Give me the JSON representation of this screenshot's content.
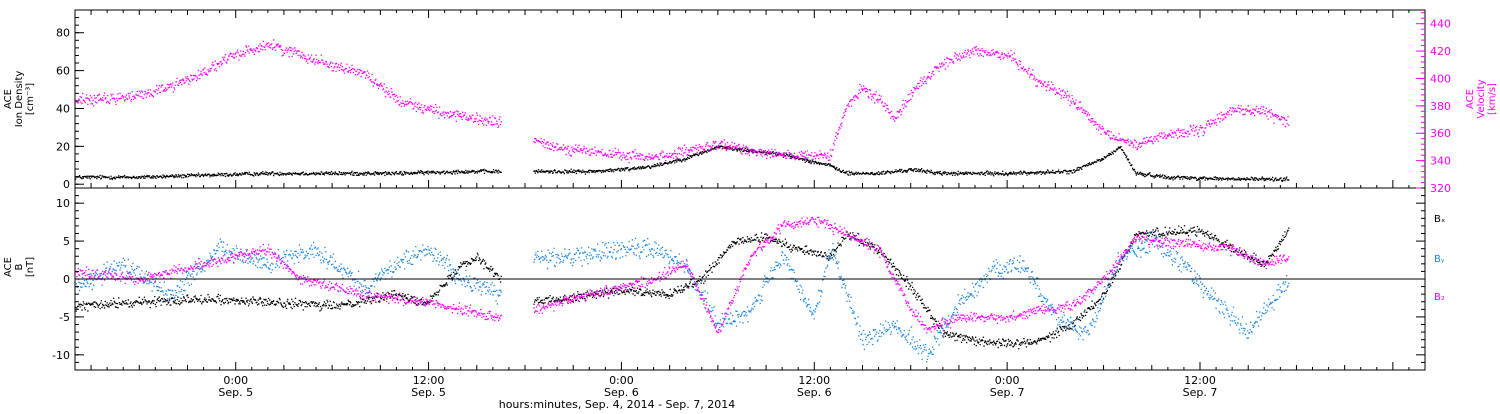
{
  "colors": {
    "black": "#000000",
    "magenta": "#ff00ff",
    "blue": "#1e88e5"
  },
  "x_axis": {
    "label": "hours:minutes, Sep.  4, 2014 - Sep.  7, 2014",
    "range": [
      "2014-09-04T14:00",
      "2014-09-08T02:00"
    ],
    "ticks": [
      {
        "time": "0:00",
        "date": "Sep. 5"
      },
      {
        "time": "12:00",
        "date": "Sep. 5"
      },
      {
        "time": "0:00",
        "date": "Sep. 6"
      },
      {
        "time": "12:00",
        "date": "Sep. 6"
      },
      {
        "time": "0:00",
        "date": "Sep. 7"
      },
      {
        "time": "12:00",
        "date": "Sep. 7"
      }
    ]
  },
  "chart_data": [
    {
      "type": "scatter",
      "panel": "top",
      "left_axis": {
        "label_lines": [
          "ACE",
          "Ion Density",
          "[cm⁻³]"
        ],
        "ylim": [
          -2,
          92
        ],
        "ticks": [
          "0",
          "20",
          "40",
          "60",
          "80"
        ],
        "color": "#000000"
      },
      "right_axis": {
        "label_lines": [
          "ACE",
          "Velocity",
          "[km/s]"
        ],
        "ylim": [
          320,
          450
        ],
        "ticks": [
          "320",
          "340",
          "360",
          "380",
          "400",
          "420",
          "440"
        ],
        "color": "#ff00ff"
      },
      "series": [
        {
          "key": "density",
          "axis": "left",
          "color": "#000000",
          "gaps": [
            [
              "2014-09-05T16:30",
              "2014-09-05T18:30"
            ]
          ],
          "points": [
            [
              "2014-09-04T14:00",
              4
            ],
            [
              "2014-09-04T18:00",
              4
            ],
            [
              "2014-09-04T22:00",
              5
            ],
            [
              "2014-09-05T02:00",
              6
            ],
            [
              "2014-09-05T06:00",
              6
            ],
            [
              "2014-09-05T10:00",
              6
            ],
            [
              "2014-09-05T14:00",
              7
            ],
            [
              "2014-09-05T16:30",
              7
            ],
            [
              "2014-09-05T18:30",
              7
            ],
            [
              "2014-09-05T22:00",
              7
            ],
            [
              "2014-09-06T00:00",
              8
            ],
            [
              "2014-09-06T02:00",
              10
            ],
            [
              "2014-09-06T04:00",
              14
            ],
            [
              "2014-09-06T06:00",
              20
            ],
            [
              "2014-09-06T08:00",
              18
            ],
            [
              "2014-09-06T10:00",
              16
            ],
            [
              "2014-09-06T12:00",
              12
            ],
            [
              "2014-09-06T13:00",
              10
            ],
            [
              "2014-09-06T14:00",
              6
            ],
            [
              "2014-09-06T16:00",
              6
            ],
            [
              "2014-09-06T18:00",
              8
            ],
            [
              "2014-09-06T20:00",
              6
            ],
            [
              "2014-09-07T00:00",
              6
            ],
            [
              "2014-09-07T04:00",
              7
            ],
            [
              "2014-09-07T06:00",
              14
            ],
            [
              "2014-09-07T07:00",
              20
            ],
            [
              "2014-09-07T08:00",
              6
            ],
            [
              "2014-09-07T10:00",
              4
            ],
            [
              "2014-09-07T14:00",
              3
            ],
            [
              "2014-09-07T17:30",
              3
            ]
          ],
          "jitter": 1.5
        },
        {
          "key": "velocity",
          "axis": "right",
          "color": "#ff00ff",
          "gaps": [
            [
              "2014-09-05T16:30",
              "2014-09-05T18:30"
            ]
          ],
          "points": [
            [
              "2014-09-04T14:00",
              385
            ],
            [
              "2014-09-04T16:00",
              385
            ],
            [
              "2014-09-04T18:00",
              388
            ],
            [
              "2014-09-04T20:00",
              395
            ],
            [
              "2014-09-04T22:00",
              405
            ],
            [
              "2014-09-05T00:00",
              418
            ],
            [
              "2014-09-05T02:00",
              425
            ],
            [
              "2014-09-05T04:00",
              418
            ],
            [
              "2014-09-05T06:00",
              410
            ],
            [
              "2014-09-05T08:00",
              404
            ],
            [
              "2014-09-05T10:00",
              385
            ],
            [
              "2014-09-05T12:00",
              378
            ],
            [
              "2014-09-05T14:00",
              372
            ],
            [
              "2014-09-05T16:30",
              368
            ],
            [
              "2014-09-05T18:30",
              355
            ],
            [
              "2014-09-05T20:00",
              350
            ],
            [
              "2014-09-05T22:00",
              347
            ],
            [
              "2014-09-06T00:00",
              344
            ],
            [
              "2014-09-06T02:00",
              343
            ],
            [
              "2014-09-06T04:00",
              347
            ],
            [
              "2014-09-06T06:00",
              352
            ],
            [
              "2014-09-06T08:00",
              348
            ],
            [
              "2014-09-06T10:00",
              345
            ],
            [
              "2014-09-06T12:00",
              343
            ],
            [
              "2014-09-06T13:00",
              345
            ],
            [
              "2014-09-06T14:00",
              380
            ],
            [
              "2014-09-06T15:00",
              393
            ],
            [
              "2014-09-06T16:00",
              385
            ],
            [
              "2014-09-06T17:00",
              372
            ],
            [
              "2014-09-06T18:00",
              390
            ],
            [
              "2014-09-06T20:00",
              412
            ],
            [
              "2014-09-06T22:00",
              420
            ],
            [
              "2014-09-07T00:00",
              418
            ],
            [
              "2014-09-07T02:00",
              398
            ],
            [
              "2014-09-07T04:00",
              385
            ],
            [
              "2014-09-07T06:00",
              360
            ],
            [
              "2014-09-07T08:00",
              352
            ],
            [
              "2014-09-07T10:00",
              360
            ],
            [
              "2014-09-07T12:00",
              362
            ],
            [
              "2014-09-07T14:00",
              378
            ],
            [
              "2014-09-07T16:00",
              376
            ],
            [
              "2014-09-07T17:30",
              368
            ]
          ],
          "jitter": 6
        }
      ]
    },
    {
      "type": "scatter",
      "panel": "bottom",
      "left_axis": {
        "label_lines": [
          "ACE",
          "B",
          "[nT]"
        ],
        "ylim": [
          -12,
          12
        ],
        "ticks": [
          "-10",
          "-5",
          "0",
          "5",
          "10"
        ],
        "zero_line": true
      },
      "legend": {
        "placement": "right",
        "entries": [
          {
            "label": "Bₓ",
            "color": "#000000"
          },
          {
            "label": "Bᵧ",
            "color": "#1e88e5"
          },
          {
            "label": "B₂",
            "color": "#ff00ff"
          }
        ]
      },
      "series": [
        {
          "key": "bx",
          "color": "#000000",
          "gaps": [
            [
              "2014-09-05T16:30",
              "2014-09-05T18:30"
            ]
          ],
          "points": [
            [
              "2014-09-04T14:00",
              -3.5
            ],
            [
              "2014-09-04T18:00",
              -3
            ],
            [
              "2014-09-04T22:00",
              -2.5
            ],
            [
              "2014-09-05T02:00",
              -3
            ],
            [
              "2014-09-05T06:00",
              -3.5
            ],
            [
              "2014-09-05T10:00",
              -2
            ],
            [
              "2014-09-05T12:00",
              -3
            ],
            [
              "2014-09-05T14:00",
              2
            ],
            [
              "2014-09-05T15:00",
              3
            ],
            [
              "2014-09-05T16:30",
              0
            ],
            [
              "2014-09-05T18:30",
              -3
            ],
            [
              "2014-09-05T22:00",
              -2
            ],
            [
              "2014-09-06T00:00",
              -1.5
            ],
            [
              "2014-09-06T03:00",
              -2
            ],
            [
              "2014-09-06T05:00",
              0
            ],
            [
              "2014-09-06T07:00",
              5
            ],
            [
              "2014-09-06T09:00",
              5.5
            ],
            [
              "2014-09-06T11:00",
              4
            ],
            [
              "2014-09-06T13:00",
              3
            ],
            [
              "2014-09-06T14:00",
              6
            ],
            [
              "2014-09-06T16:00",
              4
            ],
            [
              "2014-09-06T18:00",
              -1
            ],
            [
              "2014-09-06T20:00",
              -7
            ],
            [
              "2014-09-06T22:00",
              -8
            ],
            [
              "2014-09-07T00:00",
              -8.5
            ],
            [
              "2014-09-07T02:00",
              -8
            ],
            [
              "2014-09-07T04:00",
              -6
            ],
            [
              "2014-09-07T06:00",
              -2
            ],
            [
              "2014-09-07T08:00",
              6
            ],
            [
              "2014-09-07T12:00",
              6.5
            ],
            [
              "2014-09-07T14:00",
              4
            ],
            [
              "2014-09-07T16:00",
              2
            ],
            [
              "2014-09-07T17:30",
              6.5
            ]
          ],
          "jitter": 0.9
        },
        {
          "key": "by",
          "color": "#1e88e5",
          "gaps": [
            [
              "2014-09-05T16:30",
              "2014-09-05T18:30"
            ]
          ],
          "points": [
            [
              "2014-09-04T14:00",
              -1
            ],
            [
              "2014-09-04T17:00",
              2
            ],
            [
              "2014-09-04T20:00",
              -2
            ],
            [
              "2014-09-04T23:00",
              4
            ],
            [
              "2014-09-05T02:00",
              2
            ],
            [
              "2014-09-05T05:00",
              4
            ],
            [
              "2014-09-05T08:00",
              -1
            ],
            [
              "2014-09-05T10:00",
              2
            ],
            [
              "2014-09-05T12:00",
              4
            ],
            [
              "2014-09-05T14:00",
              0
            ],
            [
              "2014-09-05T16:30",
              -2
            ],
            [
              "2014-09-05T18:30",
              3
            ],
            [
              "2014-09-05T21:00",
              3
            ],
            [
              "2014-09-06T00:00",
              4
            ],
            [
              "2014-09-06T02:00",
              4
            ],
            [
              "2014-09-06T04:00",
              2
            ],
            [
              "2014-09-06T06:00",
              -6
            ],
            [
              "2014-09-06T08:00",
              -4
            ],
            [
              "2014-09-06T10:00",
              3
            ],
            [
              "2014-09-06T12:00",
              -5
            ],
            [
              "2014-09-06T13:00",
              4
            ],
            [
              "2014-09-06T15:00",
              -8
            ],
            [
              "2014-09-06T17:00",
              -6
            ],
            [
              "2014-09-06T19:00",
              -10
            ],
            [
              "2014-09-06T21:00",
              -3
            ],
            [
              "2014-09-06T23:00",
              1
            ],
            [
              "2014-09-07T01:00",
              2
            ],
            [
              "2014-09-07T03:00",
              -5
            ],
            [
              "2014-09-07T05:00",
              -7
            ],
            [
              "2014-09-07T07:00",
              3
            ],
            [
              "2014-09-07T09:00",
              5
            ],
            [
              "2014-09-07T11:00",
              2
            ],
            [
              "2014-09-07T13:00",
              -3
            ],
            [
              "2014-09-07T15:00",
              -7
            ],
            [
              "2014-09-07T17:30",
              0
            ]
          ],
          "jitter": 1.8
        },
        {
          "key": "bz",
          "color": "#ff00ff",
          "gaps": [
            [
              "2014-09-05T16:30",
              "2014-09-05T18:30"
            ]
          ],
          "points": [
            [
              "2014-09-04T14:00",
              1
            ],
            [
              "2014-09-04T18:00",
              0
            ],
            [
              "2014-09-04T22:00",
              2
            ],
            [
              "2014-09-05T02:00",
              4
            ],
            [
              "2014-09-05T04:00",
              0
            ],
            [
              "2014-09-05T08:00",
              -2
            ],
            [
              "2014-09-05T12:00",
              -3
            ],
            [
              "2014-09-05T14:00",
              -4
            ],
            [
              "2014-09-05T16:30",
              -5
            ],
            [
              "2014-09-05T18:30",
              -4
            ],
            [
              "2014-09-05T22:00",
              -2
            ],
            [
              "2014-09-06T00:00",
              -1
            ],
            [
              "2014-09-06T02:00",
              0
            ],
            [
              "2014-09-06T04:00",
              2
            ],
            [
              "2014-09-06T06:00",
              -7
            ],
            [
              "2014-09-06T08:00",
              3
            ],
            [
              "2014-09-06T10:00",
              7
            ],
            [
              "2014-09-06T12:00",
              8
            ],
            [
              "2014-09-06T14:00",
              6
            ],
            [
              "2014-09-06T16:00",
              4
            ],
            [
              "2014-09-06T18:00",
              -4
            ],
            [
              "2014-09-06T19:00",
              -6.5
            ],
            [
              "2014-09-06T21:00",
              -5
            ],
            [
              "2014-09-07T00:00",
              -5
            ],
            [
              "2014-09-07T02:00",
              -4
            ],
            [
              "2014-09-07T04:00",
              -3.5
            ],
            [
              "2014-09-07T06:00",
              0
            ],
            [
              "2014-09-07T08:00",
              5.5
            ],
            [
              "2014-09-07T10:00",
              5
            ],
            [
              "2014-09-07T12:00",
              4.5
            ],
            [
              "2014-09-07T14:00",
              4
            ],
            [
              "2014-09-07T16:00",
              2
            ],
            [
              "2014-09-07T17:30",
              3
            ]
          ],
          "jitter": 1.0
        }
      ]
    }
  ]
}
